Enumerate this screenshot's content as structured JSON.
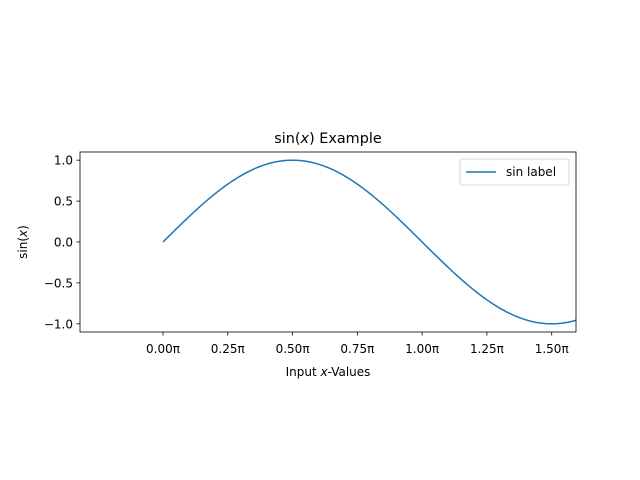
{
  "chart_data": {
    "type": "line",
    "title": "sin(x) Example",
    "title_parts": {
      "pre": "sin(",
      "var": "x",
      "post": ") Example"
    },
    "xlabel": "Input x-Values",
    "xlabel_parts": {
      "pre": "Input ",
      "var": "x",
      "post": "-Values"
    },
    "ylabel": "sin(x)",
    "ylabel_parts": {
      "pre": "sin(",
      "var": "x",
      "post": ")"
    },
    "xlim_pi": [
      -0.3203125,
      1.59375
    ],
    "ylim": [
      -1.1,
      1.1
    ],
    "x_ticks": [
      {
        "value_pi": 0.0,
        "label": "0.00π"
      },
      {
        "value_pi": 0.25,
        "label": "0.25π"
      },
      {
        "value_pi": 0.5,
        "label": "0.50π"
      },
      {
        "value_pi": 0.75,
        "label": "0.75π"
      },
      {
        "value_pi": 1.0,
        "label": "1.00π"
      },
      {
        "value_pi": 1.25,
        "label": "1.25π"
      },
      {
        "value_pi": 1.5,
        "label": "1.50π"
      }
    ],
    "y_ticks": [
      {
        "value": 1.0,
        "label": "1.0"
      },
      {
        "value": 0.5,
        "label": "0.5"
      },
      {
        "value": 0.0,
        "label": "0.0"
      },
      {
        "value": -0.5,
        "label": "−0.5"
      },
      {
        "value": -1.0,
        "label": "−1.0"
      }
    ],
    "series": [
      {
        "name": "sin label",
        "color": "#1f77b4",
        "function": "sin(x)",
        "x_range_pi": [
          0.0,
          1.6
        ]
      }
    ],
    "legend": {
      "position": "top-right",
      "entries": [
        "sin label"
      ]
    },
    "grid": false
  }
}
